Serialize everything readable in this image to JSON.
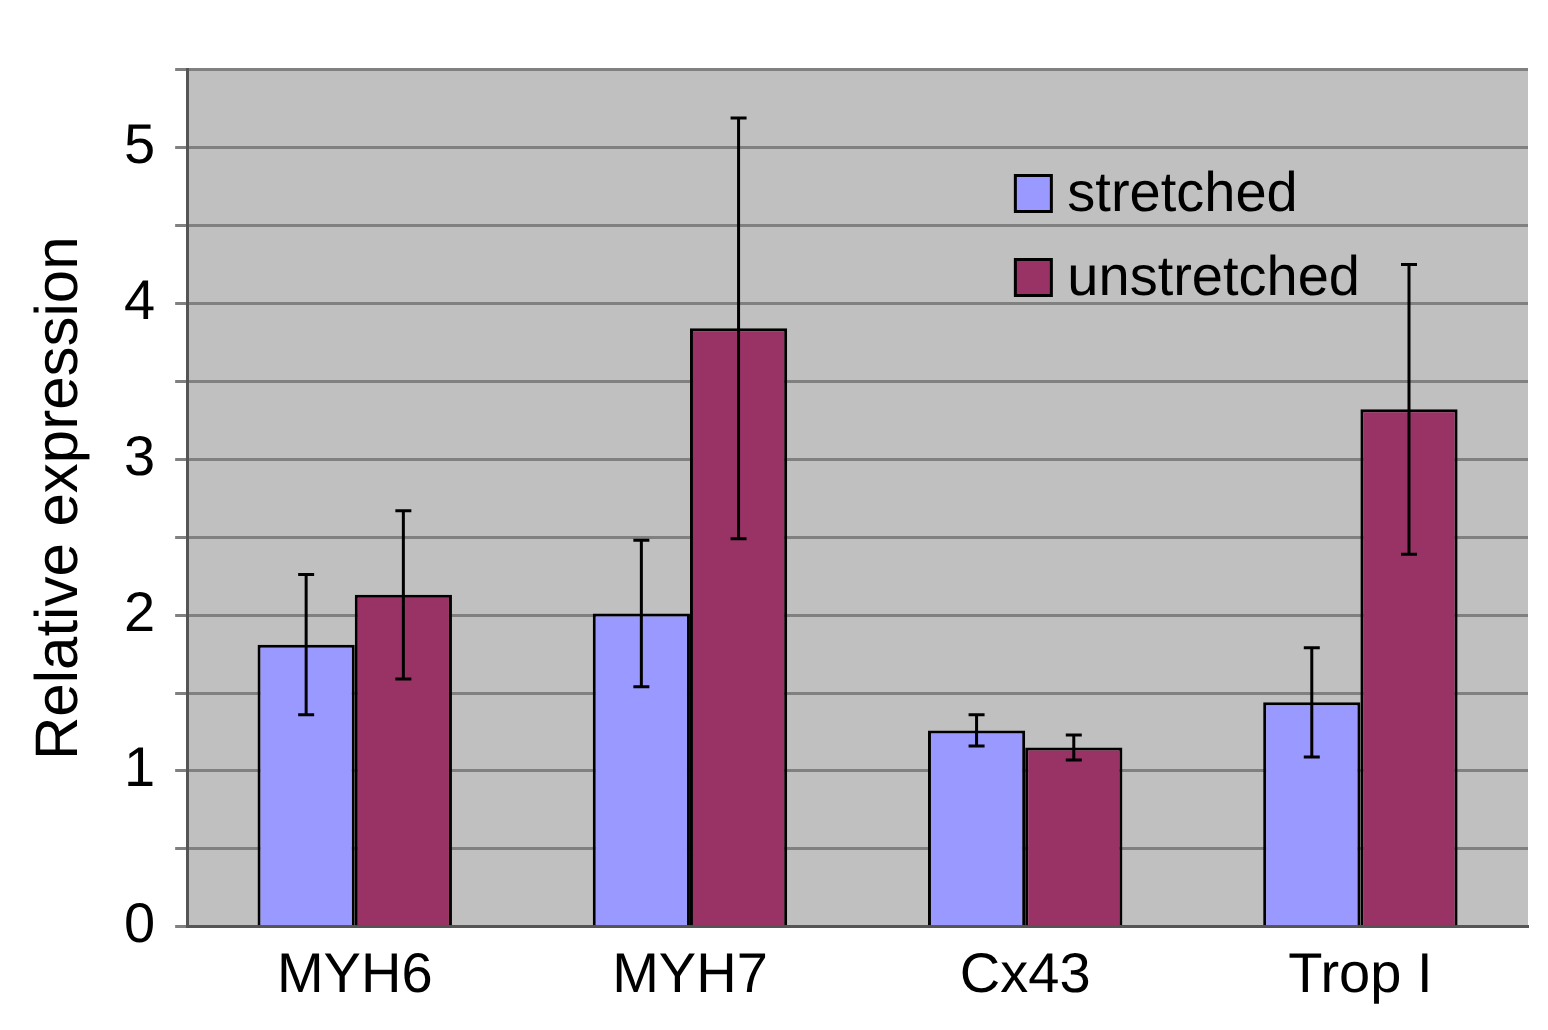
{
  "chart_data": {
    "type": "bar",
    "ylabel": "Relative expression",
    "categories": [
      "MYH6",
      "MYH7",
      "Cx43",
      "Trop I"
    ],
    "series": [
      {
        "name": "stretched",
        "color": "#9999ff",
        "values": [
          1.81,
          2.01,
          1.26,
          1.44
        ],
        "errors": [
          0.45,
          0.47,
          0.1,
          0.35
        ]
      },
      {
        "name": "unstretched",
        "color": "#993366",
        "values": [
          2.13,
          3.84,
          1.15,
          3.32
        ],
        "errors": [
          0.54,
          1.35,
          0.08,
          0.93
        ]
      }
    ],
    "ylim": [
      0,
      5.5
    ],
    "yticks": [
      0,
      {
        "value": 0.5,
        "label": null
      },
      1,
      {
        "value": 1.5,
        "label": null
      },
      2,
      {
        "value": 2.5,
        "label": null
      },
      3,
      {
        "value": 3.5,
        "label": null
      },
      4,
      {
        "value": 4.5,
        "label": null
      },
      5,
      {
        "value": 5.5,
        "label": null
      }
    ],
    "grid": "y",
    "legend": "top right"
  }
}
